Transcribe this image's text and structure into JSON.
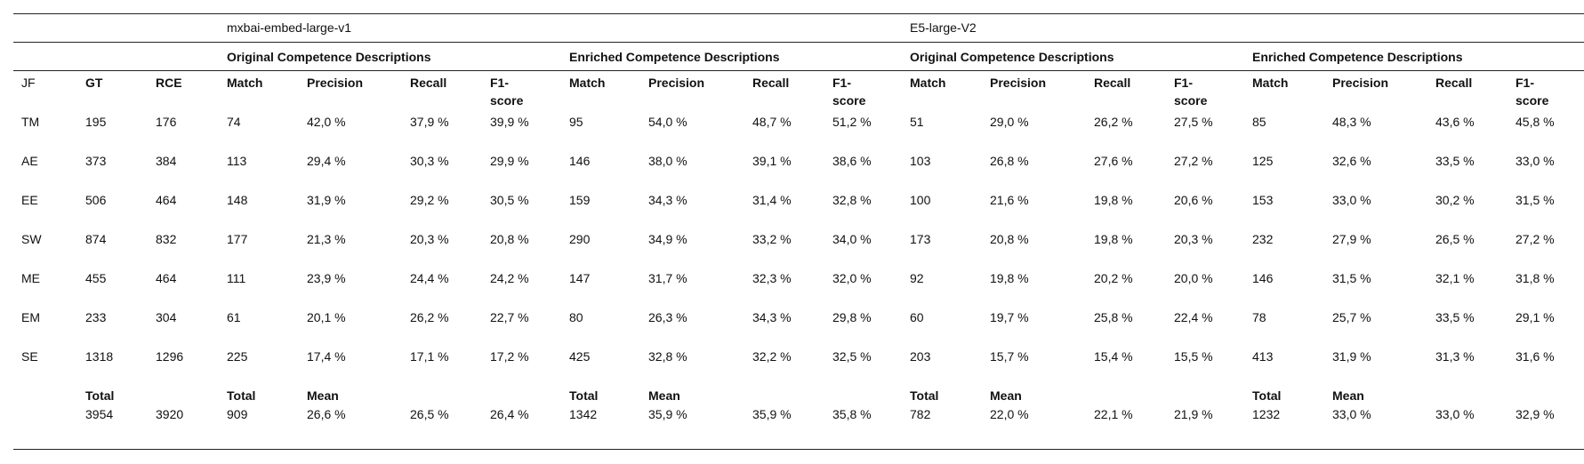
{
  "models": [
    "mxbai-embed-large-v1",
    "E5-large-V2"
  ],
  "group_labels": [
    "Original Competence Descriptions",
    "Enriched Competence Descriptions",
    "Original Competence Descriptions",
    "Enriched Competence Descriptions"
  ],
  "header_row": [
    "JF",
    "GT",
    "RCE",
    "Match",
    "Precision",
    "Recall",
    "F1-score",
    "Match",
    "Precision",
    "Recall",
    "F1-score",
    "Match",
    "Precision",
    "Recall",
    "F1-score",
    "Match",
    "Precision",
    "Recall",
    "F1-score"
  ],
  "rows": [
    [
      "TM",
      "195",
      "176",
      "74",
      "42,0 %",
      "37,9 %",
      "39,9 %",
      "95",
      "54,0 %",
      "48,7 %",
      "51,2 %",
      "51",
      "29,0 %",
      "26,2 %",
      "27,5 %",
      "85",
      "48,3 %",
      "43,6 %",
      "45,8 %"
    ],
    [
      "AE",
      "373",
      "384",
      "113",
      "29,4 %",
      "30,3 %",
      "29,9 %",
      "146",
      "38,0 %",
      "39,1 %",
      "38,6 %",
      "103",
      "26,8 %",
      "27,6 %",
      "27,2 %",
      "125",
      "32,6 %",
      "33,5 %",
      "33,0 %"
    ],
    [
      "EE",
      "506",
      "464",
      "148",
      "31,9 %",
      "29,2 %",
      "30,5 %",
      "159",
      "34,3 %",
      "31,4 %",
      "32,8 %",
      "100",
      "21,6 %",
      "19,8 %",
      "20,6 %",
      "153",
      "33,0 %",
      "30,2 %",
      "31,5 %"
    ],
    [
      "SW",
      "874",
      "832",
      "177",
      "21,3 %",
      "20,3 %",
      "20,8 %",
      "290",
      "34,9 %",
      "33,2 %",
      "34,0 %",
      "173",
      "20,8 %",
      "19,8 %",
      "20,3 %",
      "232",
      "27,9 %",
      "26,5 %",
      "27,2 %"
    ],
    [
      "ME",
      "455",
      "464",
      "111",
      "23,9 %",
      "24,4 %",
      "24,2 %",
      "147",
      "31,7 %",
      "32,3 %",
      "32,0 %",
      "92",
      "19,8 %",
      "20,2 %",
      "20,0 %",
      "146",
      "31,5 %",
      "32,1 %",
      "31,8 %"
    ],
    [
      "EM",
      "233",
      "304",
      "61",
      "20,1 %",
      "26,2 %",
      "22,7 %",
      "80",
      "26,3 %",
      "34,3 %",
      "29,8 %",
      "60",
      "19,7 %",
      "25,8 %",
      "22,4 %",
      "78",
      "25,7 %",
      "33,5 %",
      "29,1 %"
    ],
    [
      "SE",
      "1318",
      "1296",
      "225",
      "17,4 %",
      "17,1 %",
      "17,2 %",
      "425",
      "32,8 %",
      "32,2 %",
      "32,5 %",
      "203",
      "15,7 %",
      "15,4 %",
      "15,5 %",
      "413",
      "31,9 %",
      "31,3 %",
      "31,6 %"
    ]
  ],
  "summary_labels": [
    "",
    "Total",
    "",
    "Total",
    "Mean",
    "",
    "",
    "Total",
    "Mean",
    "",
    "",
    "Total",
    "Mean",
    "",
    "",
    "Total",
    "Mean",
    "",
    ""
  ],
  "summary_values": [
    "",
    "3954",
    "3920",
    "909",
    "26,6 %",
    "26,5 %",
    "26,4 %",
    "1342",
    "35,9 %",
    "35,9 %",
    "35,8 %",
    "782",
    "22,0 %",
    "22,1 %",
    "21,9 %",
    "1232",
    "33,0 %",
    "33,0 %",
    "32,9 %"
  ]
}
